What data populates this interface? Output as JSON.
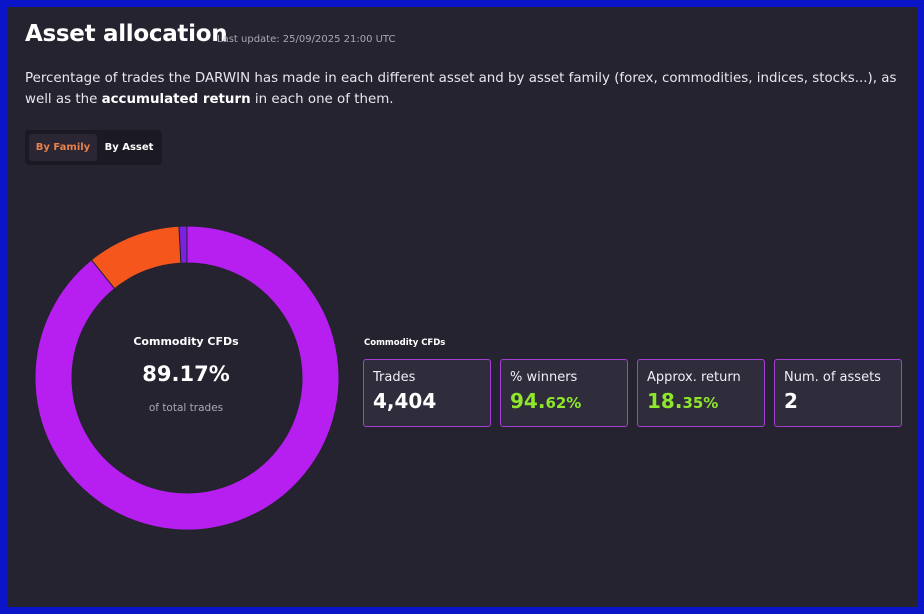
{
  "header": {
    "title": "Asset allocation",
    "last_update": "Last update: 25/09/2025 21:00 UTC"
  },
  "description": {
    "text_before": "Percentage of trades the DARWIN has made in each different asset and by asset family (forex, commodities, indices, stocks...), as well as the ",
    "bold": "accumulated return",
    "text_after": " in each one of them."
  },
  "toggle": {
    "options": [
      "By Family",
      "By Asset"
    ],
    "selected": "By Family"
  },
  "chart_data": {
    "type": "pie",
    "donut": true,
    "values": [
      89.17,
      9.99,
      0.84
    ],
    "labels": [
      "Commodity CFDs",
      "",
      ""
    ],
    "colors": [
      "#b61ff0",
      "#f5561c",
      "#7a22e0"
    ],
    "highlighted": {
      "label": "Commodity CFDs",
      "value": "89.17%",
      "sub": "of total trades"
    }
  },
  "details": {
    "family": "Commodity CFDs",
    "cards": [
      {
        "label": "Trades",
        "value": "4,404",
        "value_suffix": ""
      },
      {
        "label": "% winners",
        "value": "94.",
        "value_suffix": "62%"
      },
      {
        "label": "Approx. return",
        "value": "18.",
        "value_suffix": "35%"
      },
      {
        "label": "Num. of assets",
        "value": "2",
        "value_suffix": ""
      }
    ]
  },
  "colors": {
    "accent": "#e8824a",
    "positive": "#8ee72a",
    "card_border": "#a43fd6",
    "frame": "#0a14c8"
  }
}
